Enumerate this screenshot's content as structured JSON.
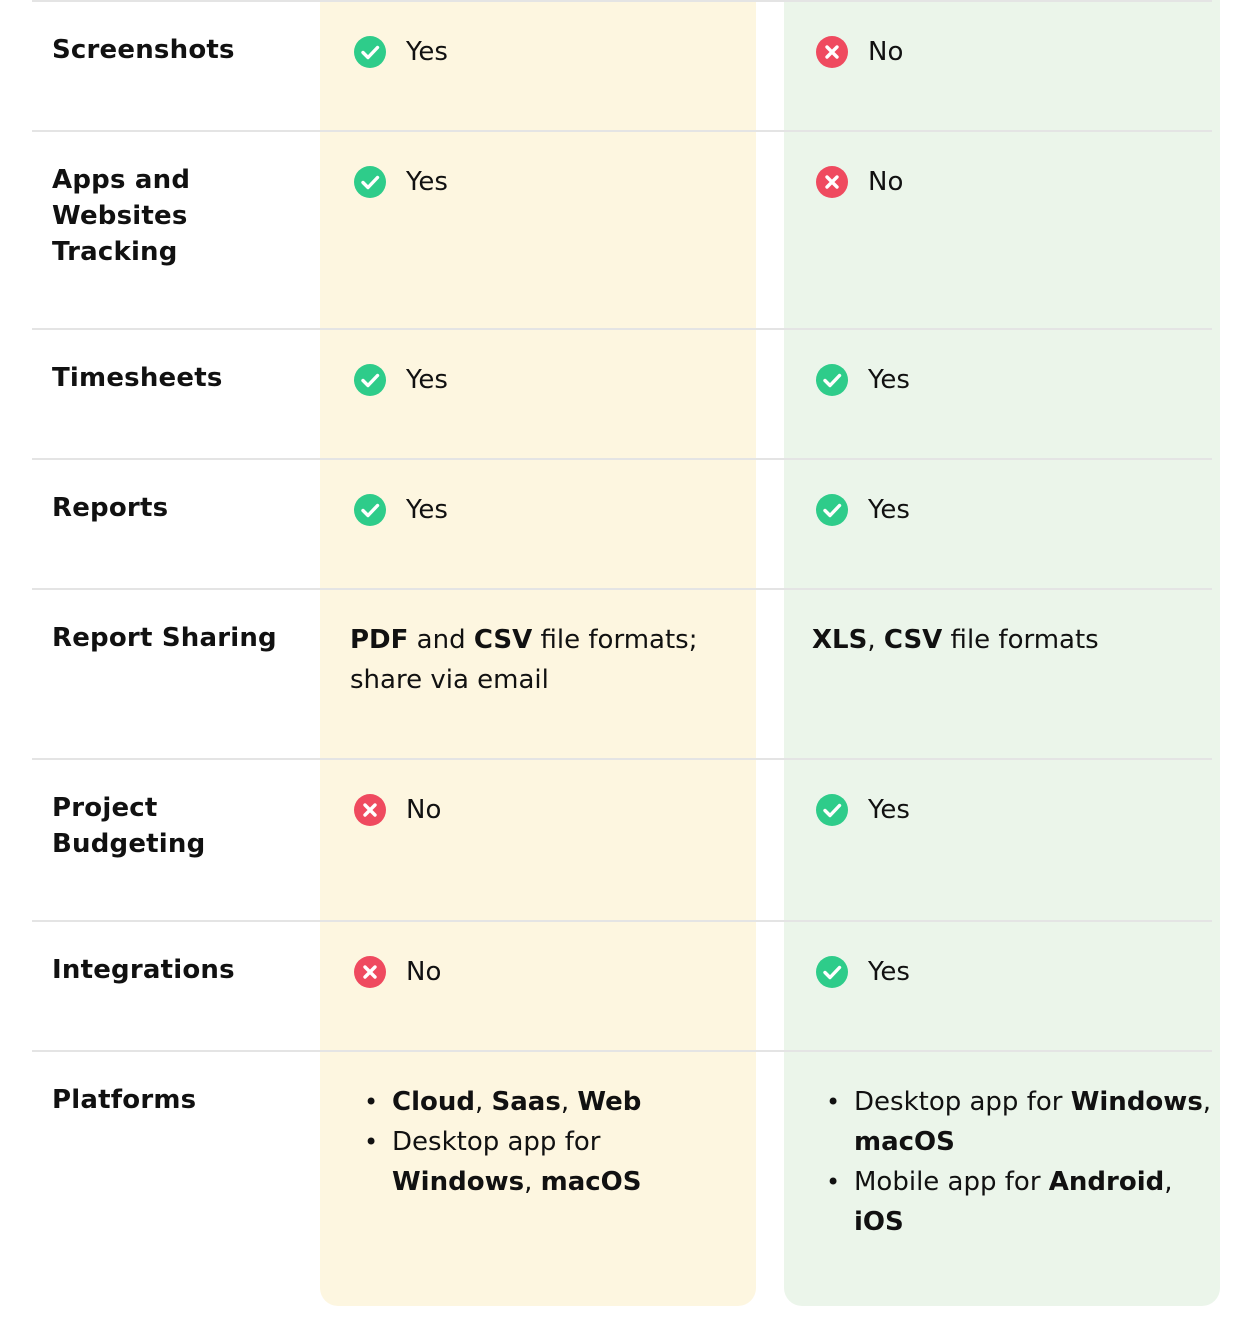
{
  "colors": {
    "yes": "#2ecc8a",
    "no": "#ef4a5f",
    "column_a_bg": "#fdf6e0",
    "column_b_bg": "#ebf5ea"
  },
  "rows": [
    {
      "feature": "Screenshots",
      "a": {
        "type": "status",
        "icon": "check-circle-icon",
        "value": "Yes"
      },
      "b": {
        "type": "status",
        "icon": "x-circle-icon",
        "value": "No"
      }
    },
    {
      "feature": "Apps and Websites Tracking",
      "a": {
        "type": "status",
        "icon": "check-circle-icon",
        "value": "Yes"
      },
      "b": {
        "type": "status",
        "icon": "x-circle-icon",
        "value": "No"
      }
    },
    {
      "feature": "Timesheets",
      "a": {
        "type": "status",
        "icon": "check-circle-icon",
        "value": "Yes"
      },
      "b": {
        "type": "status",
        "icon": "check-circle-icon",
        "value": "Yes"
      }
    },
    {
      "feature": "Reports",
      "a": {
        "type": "status",
        "icon": "check-circle-icon",
        "value": "Yes"
      },
      "b": {
        "type": "status",
        "icon": "check-circle-icon",
        "value": "Yes"
      }
    },
    {
      "feature": "Report Sharing",
      "a": {
        "type": "rich",
        "parts": [
          [
            "PDF",
            true
          ],
          [
            " and ",
            false
          ],
          [
            "CSV",
            true
          ],
          [
            " file formats; share via email",
            false
          ]
        ]
      },
      "b": {
        "type": "rich",
        "parts": [
          [
            "XLS",
            true
          ],
          [
            ", ",
            false
          ],
          [
            "CSV",
            true
          ],
          [
            " file formats",
            false
          ]
        ]
      }
    },
    {
      "feature": "Project Budgeting",
      "a": {
        "type": "status",
        "icon": "x-circle-icon",
        "value": "No"
      },
      "b": {
        "type": "status",
        "icon": "check-circle-icon",
        "value": "Yes"
      }
    },
    {
      "feature": "Integrations",
      "a": {
        "type": "status",
        "icon": "x-circle-icon",
        "value": "No"
      },
      "b": {
        "type": "status",
        "icon": "check-circle-icon",
        "value": "Yes"
      }
    },
    {
      "feature": "Platforms",
      "a": {
        "type": "list",
        "items": [
          [
            [
              "Cloud",
              true
            ],
            [
              ", ",
              false
            ],
            [
              "Saas",
              true
            ],
            [
              ", ",
              false
            ],
            [
              "Web",
              true
            ]
          ],
          [
            [
              "Desktop app for ",
              false
            ],
            [
              "Windows",
              true
            ],
            [
              ", ",
              false
            ],
            [
              "macOS",
              true
            ]
          ]
        ]
      },
      "b": {
        "type": "list",
        "items": [
          [
            [
              "Desktop app for ",
              false
            ],
            [
              "Windows",
              true
            ],
            [
              ", ",
              false
            ],
            [
              "macOS",
              true
            ]
          ],
          [
            [
              "Mobile app for ",
              false
            ],
            [
              "Android",
              true
            ],
            [
              ", ",
              false
            ],
            [
              "iOS",
              true
            ]
          ]
        ]
      }
    }
  ]
}
